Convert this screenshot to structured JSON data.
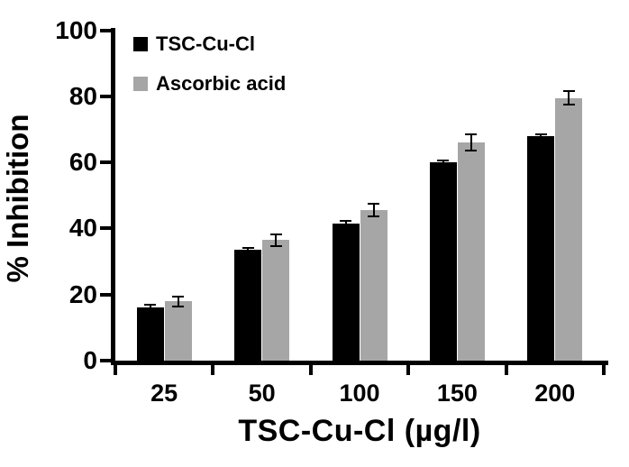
{
  "chart_data": {
    "type": "bar",
    "title": "",
    "xlabel": "TSC-Cu-Cl (µg/l)",
    "ylabel": "% Inhibition",
    "categories": [
      "25",
      "50",
      "100",
      "150",
      "200"
    ],
    "series": [
      {
        "name": "TSC-Cu-Cl",
        "color": "#000000",
        "values": [
          16,
          33.5,
          41.5,
          60,
          68
        ],
        "error_bars": [
          1.0,
          0.7,
          0.8,
          0.7,
          0.6
        ]
      },
      {
        "name": "Ascorbic acid",
        "color": "#a6a6a6",
        "values": [
          18,
          36.5,
          45.5,
          66,
          79.5
        ],
        "error_bars": [
          1.5,
          1.8,
          1.9,
          2.4,
          2.0
        ]
      }
    ],
    "ylim": [
      0,
      100
    ],
    "yticks": [
      0,
      20,
      40,
      60,
      80,
      100
    ],
    "grid": false,
    "legend_position": "top-left inside plot area",
    "axis_color": "#000000",
    "background_color": "#ffffff"
  }
}
